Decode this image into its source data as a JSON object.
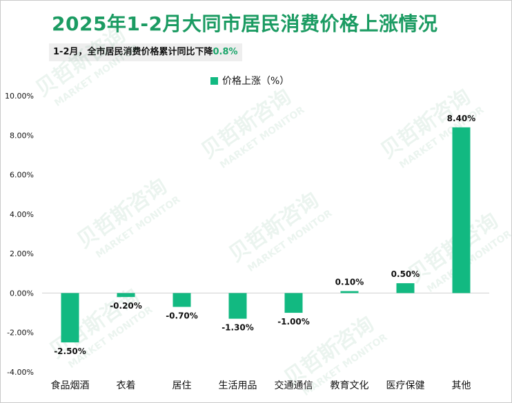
{
  "title": "2025年1-2月大同市居民消费价格上涨情况",
  "subtitle": {
    "text": "1-2月，全市居民消费价格累计同比下降",
    "highlight": "0.8%"
  },
  "colors": {
    "title": "#1b9b62",
    "bar": "#12b981",
    "highlight": "#1aa56a"
  },
  "chart_data": {
    "type": "bar",
    "categories": [
      "食品烟酒",
      "衣着",
      "居住",
      "生活用品",
      "交通通信",
      "教育文化",
      "医疗保健",
      "其他"
    ],
    "series": [
      {
        "name": "价格上涨（%）",
        "values": [
          -2.5,
          -0.2,
          -0.7,
          -1.3,
          -1.0,
          0.1,
          0.5,
          8.4
        ],
        "labels": [
          "-2.50%",
          "-0.20%",
          "-0.70%",
          "-1.30%",
          "-1.00%",
          "0.10%",
          "0.50%",
          "8.40%"
        ]
      }
    ],
    "ylim": [
      -4,
      10
    ],
    "yticks": [
      10,
      8,
      6,
      4,
      2,
      0,
      -2,
      -4
    ],
    "ytick_labels": [
      "10.00%",
      "8.00%",
      "6.00%",
      "4.00%",
      "2.00%",
      "0.00%",
      "-2.00%",
      "-4.00%"
    ],
    "xlabel": "",
    "ylabel": "",
    "legend": "top-center",
    "grid": false
  },
  "watermark": {
    "cn": "贝哲斯咨询",
    "en": "MARKET MONITOR"
  }
}
